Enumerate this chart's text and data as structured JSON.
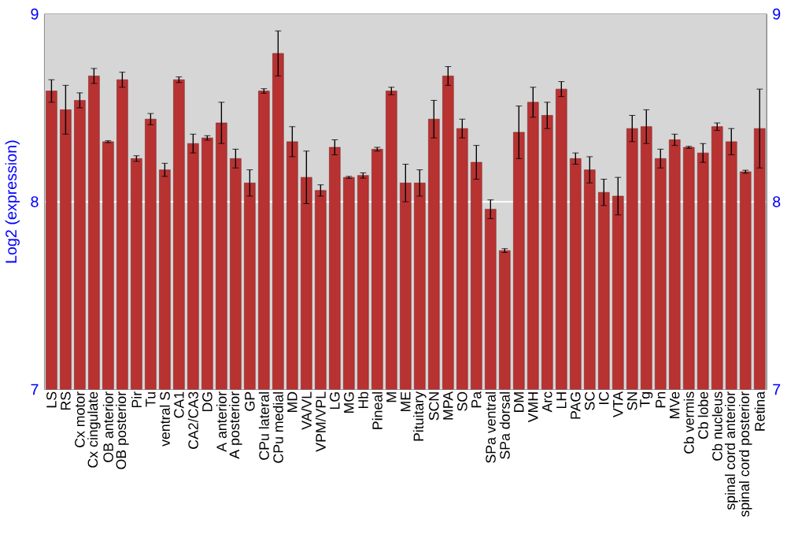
{
  "chart_data": {
    "type": "bar",
    "ylabel": "Log2 (expression)",
    "categories": [
      "LS",
      "RS",
      "Cx motor",
      "Cx cingulate",
      "OB anterior",
      "OB posterior",
      "Pir",
      "Tu",
      "ventral S",
      "CA1",
      "CA2/CA3",
      "DG",
      "A anterior",
      "A posterior",
      "GP",
      "CPu lateral",
      "CPu medial",
      "MD",
      "VA/VL",
      "VPM/VPL",
      "LG",
      "MG",
      "Hb",
      "Pineal",
      "M",
      "ME",
      "Pituitary",
      "SCN",
      "MPA",
      "SO",
      "Pa",
      "SPa ventral",
      "SPa dorsal",
      "DM",
      "VMH",
      "Arc",
      "LH",
      "PAG",
      "SC",
      "IC",
      "VTA",
      "SN",
      "Tg",
      "Pn",
      "MVe",
      "Cb vermis",
      "Cb lobe",
      "Cb nucleus",
      "spinal cord anterior",
      "spinal cord posterior",
      "Retina"
    ],
    "values": [
      8.59,
      8.49,
      8.54,
      8.67,
      8.32,
      8.65,
      8.23,
      8.44,
      8.17,
      8.65,
      8.31,
      8.34,
      8.42,
      8.23,
      8.1,
      8.59,
      8.79,
      8.32,
      8.13,
      8.06,
      8.29,
      8.13,
      8.14,
      8.28,
      8.59,
      8.1,
      8.1,
      8.44,
      8.67,
      8.39,
      8.21,
      7.96,
      7.74,
      8.37,
      8.53,
      8.46,
      8.6,
      8.23,
      8.17,
      8.05,
      8.03,
      8.39,
      8.4,
      8.23,
      8.33,
      8.29,
      8.26,
      8.4,
      8.32,
      8.16,
      8.39
    ],
    "errors": [
      0.06,
      0.13,
      0.04,
      0.04,
      0.005,
      0.04,
      0.015,
      0.03,
      0.035,
      0.015,
      0.05,
      0.012,
      0.11,
      0.05,
      0.07,
      0.012,
      0.12,
      0.08,
      0.14,
      0.03,
      0.04,
      0.005,
      0.014,
      0.01,
      0.02,
      0.1,
      0.07,
      0.1,
      0.05,
      0.05,
      0.09,
      0.05,
      0.01,
      0.14,
      0.08,
      0.07,
      0.04,
      0.03,
      0.07,
      0.07,
      0.1,
      0.07,
      0.09,
      0.05,
      0.03,
      0.005,
      0.05,
      0.02,
      0.07,
      0.008,
      0.21
    ],
    "color": "#b83232",
    "ylim": [
      7,
      9
    ],
    "yticks": [
      7,
      8,
      9
    ],
    "y2lim": [
      7,
      9
    ],
    "y2ticks": [
      7,
      8,
      9
    ],
    "grid": "y"
  }
}
